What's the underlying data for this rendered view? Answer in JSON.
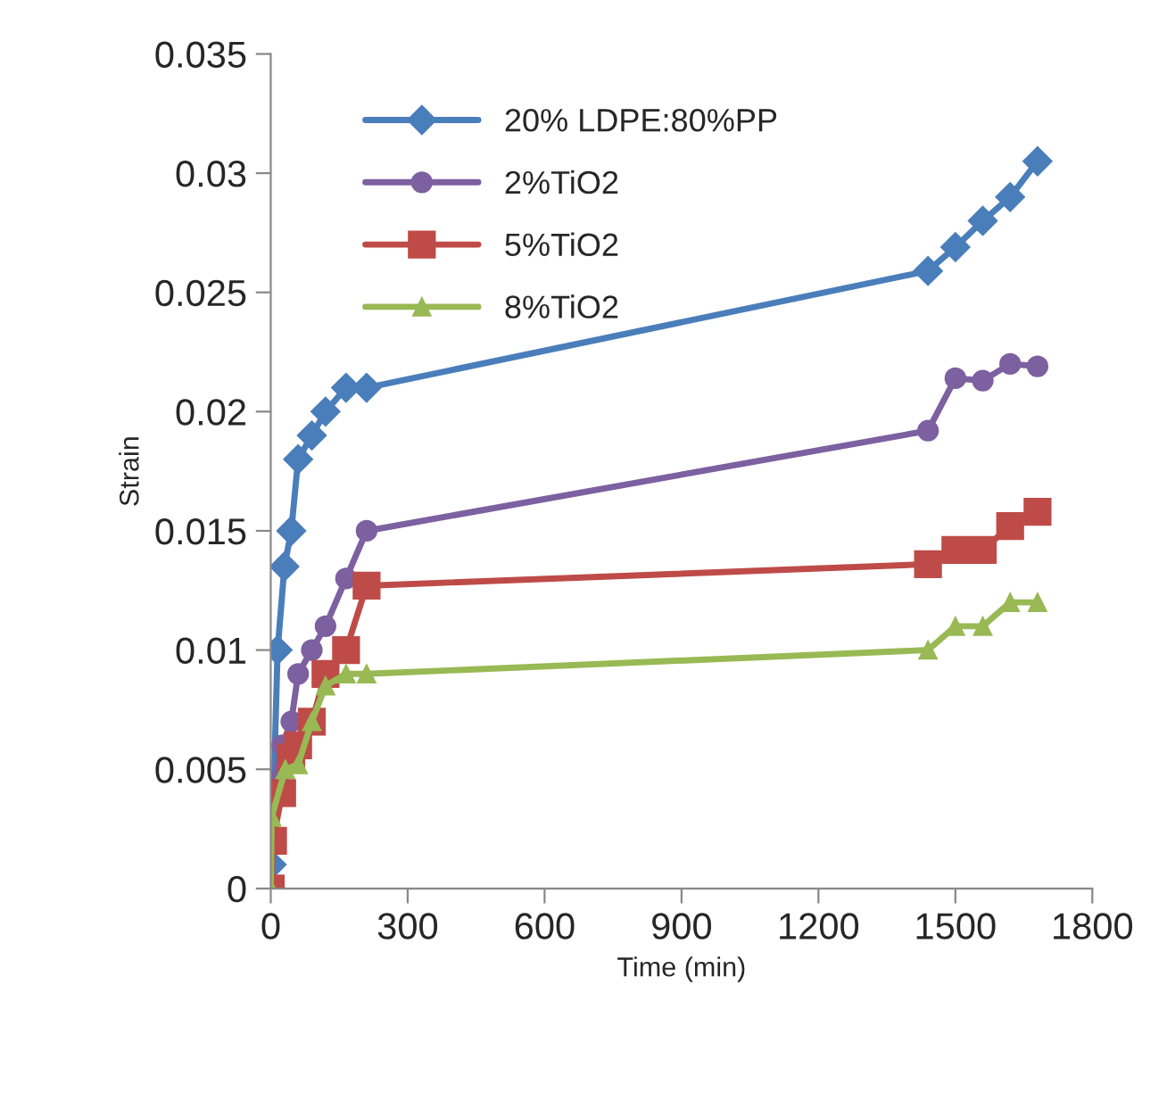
{
  "chart_data": {
    "type": "line",
    "xlabel": "Time (min)",
    "ylabel": "Strain",
    "xlim": [
      0,
      1800
    ],
    "xticks": [
      0,
      300,
      600,
      900,
      1200,
      1500,
      1800
    ],
    "ylim": [
      0,
      0.035
    ],
    "yticks": [
      0,
      0.005,
      0.01,
      0.015,
      0.02,
      0.025,
      0.03,
      0.035
    ],
    "grid": false,
    "legend": "top left",
    "line_style": "solid",
    "series": [
      {
        "name": "20% LDPE:80%PP",
        "color": "#4a7ebb",
        "marker": "diamond",
        "x": [
          0,
          2,
          15,
          30,
          45,
          60,
          90,
          120,
          165,
          210,
          1440,
          1500,
          1560,
          1620,
          1680
        ],
        "values": [
          0,
          0.001,
          0.01,
          0.0135,
          0.015,
          0.018,
          0.019,
          0.02,
          0.021,
          0.021,
          0.0259,
          0.0269,
          0.028,
          0.029,
          0.0305
        ]
      },
      {
        "name": "2%TiO2",
        "color": "#7d60a0",
        "marker": "circle",
        "x": [
          0,
          25,
          45,
          60,
          90,
          120,
          165,
          210,
          1440,
          1500,
          1560,
          1620,
          1680
        ],
        "values": [
          0.004,
          0.006,
          0.007,
          0.009,
          0.01,
          0.011,
          0.013,
          0.015,
          0.0192,
          0.0214,
          0.0213,
          0.022,
          0.0219
        ]
      },
      {
        "name": "5%TiO2",
        "color": "#be4b48",
        "marker": "square",
        "x": [
          0,
          5,
          25,
          45,
          60,
          90,
          120,
          165,
          210,
          1440,
          1500,
          1560,
          1620,
          1680
        ],
        "values": [
          0,
          0.002,
          0.004,
          0.0055,
          0.006,
          0.007,
          0.009,
          0.01,
          0.0127,
          0.0136,
          0.0142,
          0.0142,
          0.0152,
          0.0158
        ]
      },
      {
        "name": "8%TiO2",
        "color": "#98b954",
        "marker": "triangle",
        "x": [
          0,
          2,
          32,
          60,
          90,
          120,
          165,
          210,
          1440,
          1500,
          1560,
          1620,
          1680
        ],
        "values": [
          0,
          0.003,
          0.005,
          0.0052,
          0.007,
          0.0085,
          0.009,
          0.009,
          0.01,
          0.011,
          0.011,
          0.012,
          0.012
        ]
      }
    ]
  }
}
